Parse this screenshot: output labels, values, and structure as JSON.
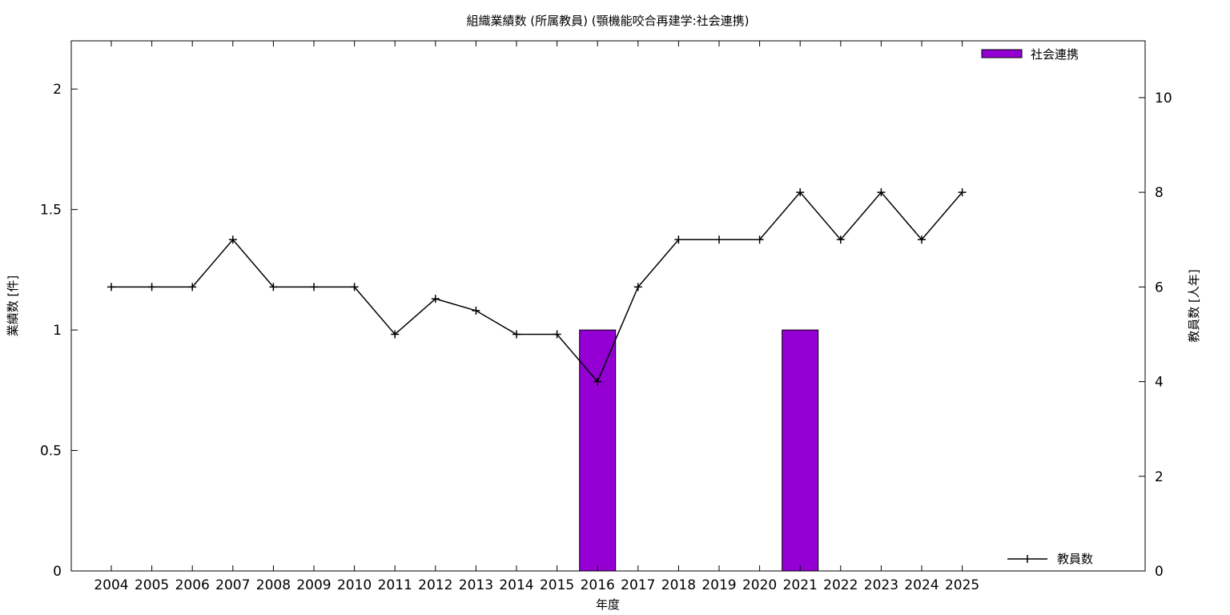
{
  "chart_data": {
    "type": "bar",
    "title": "組織業績数 (所属教員) (顎機能咬合再建学:社会連携)",
    "xlabel": "年度",
    "ylabel": "業績数 [件]",
    "y2label": "教員数 [人年]",
    "categories": [
      "2004",
      "2005",
      "2006",
      "2007",
      "2008",
      "2009",
      "2010",
      "2011",
      "2012",
      "2013",
      "2014",
      "2015",
      "2016",
      "2017",
      "2018",
      "2019",
      "2020",
      "2021",
      "2022",
      "2023",
      "2024",
      "2025"
    ],
    "ylim": [
      0,
      2.2
    ],
    "y2lim": [
      0,
      11.2
    ],
    "yticks": [
      "0",
      "0.5",
      "1",
      "1.5",
      "2"
    ],
    "y2ticks": [
      "0",
      "2",
      "4",
      "6",
      "8",
      "10"
    ],
    "legend_position": "top-right",
    "series": [
      {
        "name": "社会連携",
        "kind": "bar",
        "axis": "left",
        "color": "#9400d3",
        "values": [
          0,
          0,
          0,
          0,
          0,
          0,
          0,
          0,
          0,
          0,
          0,
          0,
          1,
          0,
          0,
          0,
          0,
          1,
          0,
          0,
          0,
          0
        ]
      },
      {
        "name": "教員数",
        "kind": "line",
        "axis": "right",
        "color": "#000000",
        "values": [
          6,
          6,
          6,
          7,
          6,
          6,
          6,
          5,
          5.75,
          5.5,
          5,
          5,
          4,
          6,
          7,
          7,
          7,
          8,
          7,
          8,
          7,
          8
        ]
      }
    ]
  }
}
